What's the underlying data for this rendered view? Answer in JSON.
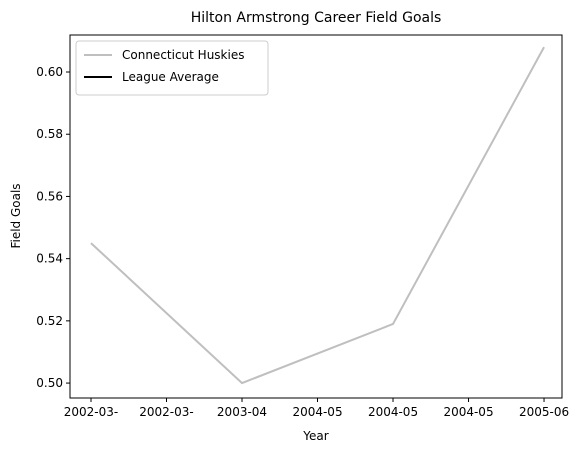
{
  "chart_data": {
    "type": "line",
    "title": "Hilton Armstrong Career Field Goals",
    "x_label": "Year",
    "y_label": "Field Goals",
    "x": [
      0,
      1,
      2,
      3
    ],
    "series": [
      {
        "name": "Connecticut Huskies",
        "color": "#bfbfbf",
        "values": [
          0.545,
          0.5,
          0.519,
          0.608
        ]
      },
      {
        "name": "League Average",
        "color": "#000000",
        "values": [
          null,
          null,
          null,
          null
        ]
      }
    ],
    "xlim": [
      -0.139,
      3.119
    ],
    "xticks": [
      {
        "value": 0,
        "label": "2002-03-"
      },
      {
        "value": 0.5,
        "label": "2002-03-"
      },
      {
        "value": 1,
        "label": "2003-04"
      },
      {
        "value": 1.5,
        "label": "2004-05"
      },
      {
        "value": 2,
        "label": "2004-05"
      },
      {
        "value": 2.5,
        "label": "2004-05"
      },
      {
        "value": 3,
        "label": "2005-06"
      }
    ],
    "ylim": [
      0.4952,
      0.6119
    ],
    "yticks": [
      {
        "value": 0.5,
        "label": "0.50"
      },
      {
        "value": 0.52,
        "label": "0.52"
      },
      {
        "value": 0.54,
        "label": "0.54"
      },
      {
        "value": 0.56,
        "label": "0.56"
      },
      {
        "value": 0.58,
        "label": "0.58"
      },
      {
        "value": 0.6,
        "label": "0.60"
      }
    ],
    "grid": false,
    "legend": "upper left"
  }
}
